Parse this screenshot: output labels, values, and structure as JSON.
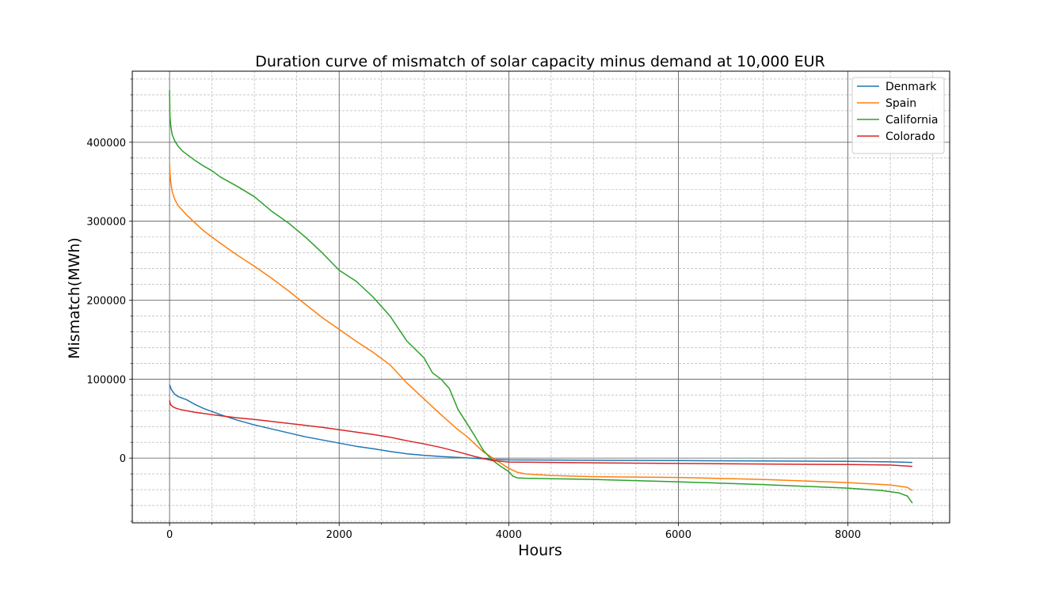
{
  "chart_data": {
    "type": "line",
    "title": "Duration curve of mismatch of solar capacity minus demand at 10,000 EUR",
    "xlabel": "Hours",
    "ylabel": "Mismatch(MWh)",
    "xlim": [
      -440,
      9200
    ],
    "ylim": [
      -82000,
      490000
    ],
    "xticks": [
      0,
      2000,
      4000,
      6000,
      8000
    ],
    "yticks": [
      0,
      100000,
      200000,
      300000,
      400000
    ],
    "xminor_step": 500,
    "yminor_step": 20000,
    "grid": true,
    "legend_position": "top-right",
    "series": [
      {
        "name": "Denmark",
        "color": "#1f77b4",
        "x": [
          0,
          20,
          60,
          100,
          200,
          300,
          400,
          600,
          800,
          1000,
          1200,
          1400,
          1600,
          1800,
          2000,
          2200,
          2400,
          2600,
          2800,
          3000,
          3200,
          3400,
          3600,
          3800,
          4000,
          5000,
          6000,
          7000,
          8000,
          8500,
          8760
        ],
        "y": [
          93000,
          87000,
          81000,
          78000,
          74000,
          68000,
          63000,
          55000,
          48000,
          42000,
          37000,
          32000,
          27000,
          23000,
          19000,
          15000,
          12000,
          8500,
          5500,
          3500,
          2000,
          800,
          -300,
          -1500,
          -2300,
          -2800,
          -3200,
          -3700,
          -4200,
          -4800,
          -5500
        ]
      },
      {
        "name": "Spain",
        "color": "#ff7f0e",
        "x": [
          0,
          10,
          30,
          60,
          100,
          200,
          300,
          400,
          600,
          800,
          1000,
          1200,
          1400,
          1600,
          1800,
          2000,
          2200,
          2400,
          2600,
          2800,
          3000,
          3200,
          3400,
          3500,
          3600,
          3700,
          3800,
          3900,
          4000,
          4100,
          4200,
          4500,
          5000,
          6000,
          7000,
          8000,
          8500,
          8700,
          8760
        ],
        "y": [
          372000,
          352000,
          338000,
          328000,
          320000,
          308000,
          298000,
          288000,
          272000,
          257000,
          243000,
          228000,
          212000,
          195000,
          178000,
          163000,
          148000,
          134000,
          118000,
          95000,
          75000,
          55000,
          36000,
          28000,
          18000,
          8000,
          1000,
          -6000,
          -13000,
          -18000,
          -20000,
          -22000,
          -23500,
          -24500,
          -27000,
          -31000,
          -34000,
          -37000,
          -41000
        ]
      },
      {
        "name": "California",
        "color": "#2ca02c",
        "x": [
          0,
          5,
          15,
          30,
          60,
          100,
          150,
          200,
          300,
          400,
          500,
          600,
          800,
          1000,
          1200,
          1400,
          1600,
          1800,
          2000,
          2200,
          2400,
          2600,
          2800,
          3000,
          3100,
          3200,
          3300,
          3400,
          3500,
          3600,
          3700,
          3800,
          3900,
          4000,
          4050,
          4100,
          4200,
          5000,
          6000,
          7000,
          8000,
          8400,
          8600,
          8700,
          8760
        ],
        "y": [
          466000,
          432000,
          420000,
          410000,
          402000,
          395000,
          389000,
          385000,
          377000,
          370000,
          364000,
          356000,
          344000,
          331000,
          313000,
          298000,
          280000,
          260000,
          238000,
          224000,
          204000,
          180000,
          148000,
          127000,
          108000,
          100000,
          88000,
          62000,
          45000,
          28000,
          10000,
          -2000,
          -10000,
          -17000,
          -23000,
          -25000,
          -25500,
          -27000,
          -30000,
          -33500,
          -38000,
          -41000,
          -44000,
          -48000,
          -57000
        ]
      },
      {
        "name": "Colorado",
        "color": "#d62728",
        "x": [
          0,
          10,
          40,
          80,
          150,
          300,
          500,
          800,
          1000,
          1200,
          1400,
          1600,
          1800,
          2000,
          2200,
          2400,
          2600,
          2800,
          3000,
          3200,
          3400,
          3600,
          3800,
          4000,
          5000,
          6000,
          7000,
          8000,
          8500,
          8760
        ],
        "y": [
          73000,
          68000,
          65000,
          63000,
          61000,
          58000,
          55000,
          51000,
          49000,
          46500,
          44000,
          41500,
          39000,
          36000,
          33000,
          30000,
          26500,
          22000,
          18000,
          13500,
          8000,
          2000,
          -3000,
          -5000,
          -6000,
          -6800,
          -7500,
          -8200,
          -8800,
          -10500
        ]
      }
    ]
  }
}
